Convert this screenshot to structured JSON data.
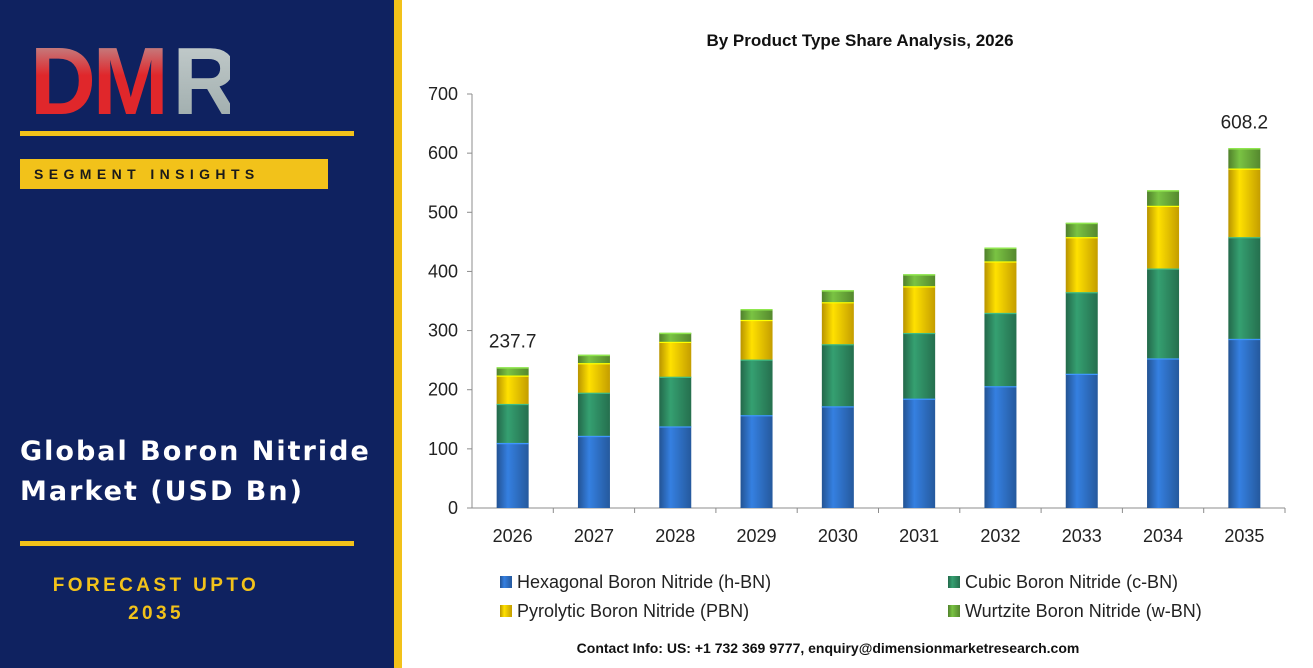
{
  "brand": {
    "logo_text": "DMR",
    "logo_letters": [
      "D",
      "M",
      "R"
    ],
    "colors": {
      "left_panel": "#0f2260",
      "accent": "#f2c21a",
      "logo_red": "#e0272b",
      "logo_grey": "#a9b6b6"
    }
  },
  "sidebar": {
    "segment_label": "SEGMENT INSIGHTS",
    "title_line1": "Global Boron Nitride",
    "title_line2": "Market (USD Bn)",
    "forecast_line1": "FORECAST UPTO",
    "forecast_line2": "2035"
  },
  "chart_data": {
    "type": "bar",
    "stacked": true,
    "title": "By Product Type Share Analysis, 2026",
    "xlabel": "",
    "ylabel": "",
    "categories": [
      "2026",
      "2027",
      "2028",
      "2029",
      "2030",
      "2031",
      "2032",
      "2033",
      "2034",
      "2035"
    ],
    "series": [
      {
        "name": "Hexagonal Boron Nitride (h-BN)",
        "color": "#2e6fc4",
        "values": [
          110,
          122,
          138,
          157,
          172,
          185,
          206,
          227,
          253,
          286
        ]
      },
      {
        "name": "Cubic Boron Nitride (c-BN)",
        "color": "#2e8b62",
        "values": [
          66,
          73,
          84,
          94,
          105,
          111,
          124,
          138,
          152,
          172
        ]
      },
      {
        "name": "Pyrolytic Boron Nitride (PBN)",
        "color": "#f5c400",
        "values": [
          48,
          50,
          59,
          67,
          71,
          79,
          87,
          93,
          106,
          116
        ]
      },
      {
        "name": "Wurtzite Boron Nitride (w-BN)",
        "color": "#6aaa3a",
        "values": [
          13.7,
          14,
          15,
          18,
          20,
          20,
          23,
          24,
          26,
          34.2
        ]
      }
    ],
    "ylim": [
      0,
      700
    ],
    "yticks": [
      0,
      100,
      200,
      300,
      400,
      500,
      600,
      700
    ],
    "total_labels": [
      {
        "category": "2026",
        "text": "237.7"
      },
      {
        "category": "2035",
        "text": "608.2"
      }
    ],
    "grid": false,
    "legend_position": "bottom"
  },
  "footer": {
    "contact": "Contact Info: US: +1 732 369 9777, enquiry@dimensionmarketresearch.com"
  }
}
